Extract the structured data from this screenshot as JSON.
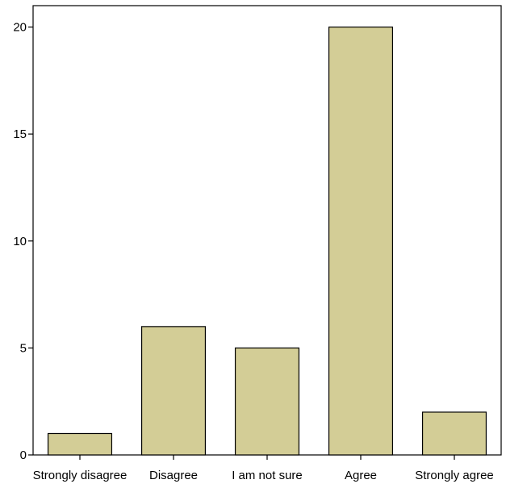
{
  "chart_data": {
    "type": "bar",
    "title": "",
    "xlabel": "",
    "ylabel": "",
    "categories": [
      "Strongly disagree",
      "Disagree",
      "I am not sure",
      "Agree",
      "Strongly agree"
    ],
    "values": [
      1,
      6,
      5,
      20,
      2
    ],
    "ylim": [
      0,
      21
    ],
    "yticks": [
      0,
      5,
      10,
      15,
      20
    ],
    "grid": false,
    "legend": "none",
    "bar_color": "#d3cd96",
    "edge_color": "#000000"
  }
}
